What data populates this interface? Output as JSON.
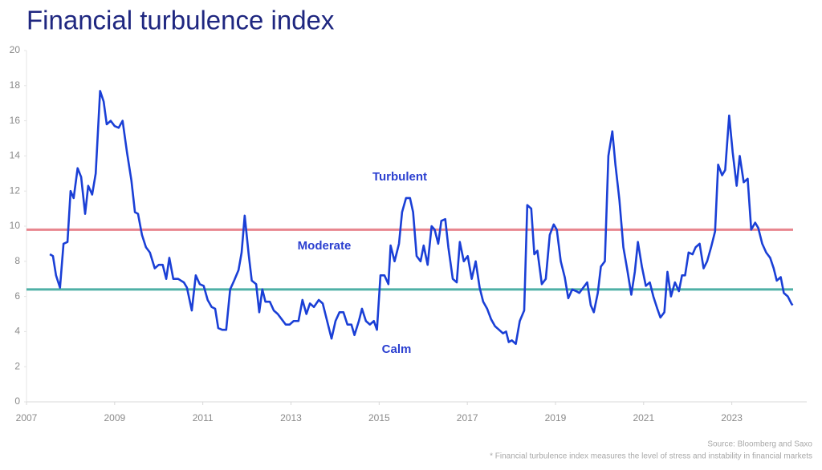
{
  "chart_data": {
    "type": "line",
    "title": "Financial turbulence index",
    "x": [
      2007.53,
      2007.6,
      2007.67,
      2007.76,
      2007.84,
      2007.93,
      2008.0,
      2008.07,
      2008.16,
      2008.24,
      2008.33,
      2008.4,
      2008.49,
      2008.57,
      2008.67,
      2008.75,
      2008.82,
      2008.91,
      2009.0,
      2009.09,
      2009.18,
      2009.28,
      2009.38,
      2009.46,
      2009.53,
      2009.62,
      2009.71,
      2009.8,
      2009.91,
      2010.0,
      2010.09,
      2010.17,
      2010.24,
      2010.33,
      2010.44,
      2010.57,
      2010.64,
      2010.75,
      2010.84,
      2010.93,
      2011.02,
      2011.11,
      2011.2,
      2011.28,
      2011.35,
      2011.44,
      2011.53,
      2011.62,
      2011.71,
      2011.81,
      2011.88,
      2011.95,
      2012.04,
      2012.11,
      2012.21,
      2012.28,
      2012.35,
      2012.42,
      2012.52,
      2012.61,
      2012.7,
      2012.79,
      2012.88,
      2012.97,
      2013.06,
      2013.17,
      2013.26,
      2013.35,
      2013.43,
      2013.52,
      2013.63,
      2013.72,
      2013.81,
      2013.92,
      2014.01,
      2014.1,
      2014.19,
      2014.28,
      2014.37,
      2014.44,
      2014.54,
      2014.61,
      2014.7,
      2014.79,
      2014.88,
      2014.95,
      2015.03,
      2015.12,
      2015.21,
      2015.26,
      2015.35,
      2015.45,
      2015.52,
      2015.61,
      2015.7,
      2015.77,
      2015.85,
      2015.94,
      2016.01,
      2016.1,
      2016.19,
      2016.26,
      2016.34,
      2016.41,
      2016.5,
      2016.57,
      2016.67,
      2016.76,
      2016.83,
      2016.92,
      2017.01,
      2017.1,
      2017.19,
      2017.28,
      2017.36,
      2017.45,
      2017.54,
      2017.63,
      2017.72,
      2017.81,
      2017.88,
      2017.94,
      2018.01,
      2018.1,
      2018.19,
      2018.29,
      2018.36,
      2018.45,
      2018.52,
      2018.59,
      2018.69,
      2018.78,
      2018.87,
      2018.96,
      2019.03,
      2019.12,
      2019.21,
      2019.29,
      2019.38,
      2019.47,
      2019.54,
      2019.63,
      2019.72,
      2019.8,
      2019.87,
      2019.96,
      2020.03,
      2020.12,
      2020.2,
      2020.29,
      2020.36,
      2020.45,
      2020.54,
      2020.63,
      2020.72,
      2020.8,
      2020.87,
      2020.96,
      2021.05,
      2021.14,
      2021.22,
      2021.31,
      2021.38,
      2021.47,
      2021.54,
      2021.62,
      2021.71,
      2021.8,
      2021.87,
      2021.94,
      2022.02,
      2022.11,
      2022.18,
      2022.27,
      2022.36,
      2022.44,
      2022.53,
      2022.62,
      2022.69,
      2022.78,
      2022.85,
      2022.94,
      2023.02,
      2023.11,
      2023.18,
      2023.27,
      2023.36,
      2023.44,
      2023.53,
      2023.6,
      2023.69,
      2023.78,
      2023.87,
      2023.95,
      2024.02,
      2024.11,
      2024.18,
      2024.27,
      2024.35,
      2024.38
    ],
    "values": [
      8.4,
      8.3,
      7.2,
      6.5,
      9.0,
      9.1,
      12.0,
      11.6,
      13.3,
      12.8,
      10.7,
      12.3,
      11.8,
      13.0,
      17.7,
      17.1,
      15.8,
      16.0,
      15.7,
      15.6,
      16.0,
      14.2,
      12.6,
      10.8,
      10.7,
      9.5,
      8.8,
      8.5,
      7.6,
      7.8,
      7.8,
      7.0,
      8.2,
      7.0,
      7.0,
      6.8,
      6.5,
      5.2,
      7.2,
      6.7,
      6.6,
      5.8,
      5.4,
      5.3,
      4.2,
      4.1,
      4.1,
      6.4,
      6.9,
      7.5,
      8.5,
      10.6,
      8.4,
      6.9,
      6.7,
      5.1,
      6.4,
      5.7,
      5.7,
      5.2,
      5.0,
      4.7,
      4.4,
      4.4,
      4.6,
      4.6,
      5.8,
      5.0,
      5.6,
      5.4,
      5.8,
      5.6,
      4.7,
      3.6,
      4.6,
      5.1,
      5.1,
      4.4,
      4.4,
      3.8,
      4.6,
      5.3,
      4.6,
      4.4,
      4.6,
      4.1,
      7.2,
      7.2,
      6.7,
      8.9,
      8.0,
      9.0,
      10.8,
      11.6,
      11.6,
      10.8,
      8.3,
      8.0,
      8.9,
      7.8,
      10.0,
      9.8,
      9.0,
      10.3,
      10.4,
      8.8,
      7.0,
      6.8,
      9.1,
      8.0,
      8.3,
      7.0,
      8.0,
      6.5,
      5.7,
      5.3,
      4.7,
      4.3,
      4.1,
      3.9,
      4.0,
      3.4,
      3.5,
      3.3,
      4.6,
      5.2,
      11.2,
      11.0,
      8.4,
      8.6,
      6.7,
      7.0,
      9.5,
      10.1,
      9.8,
      8.0,
      7.1,
      5.9,
      6.4,
      6.3,
      6.2,
      6.5,
      6.8,
      5.5,
      5.1,
      6.2,
      7.7,
      8.0,
      14.0,
      15.4,
      13.5,
      11.5,
      8.8,
      7.5,
      6.1,
      7.4,
      9.1,
      7.7,
      6.6,
      6.8,
      6.0,
      5.3,
      4.8,
      5.1,
      7.4,
      6.0,
      6.8,
      6.3,
      7.2,
      7.2,
      8.5,
      8.4,
      8.8,
      9.0,
      7.6,
      8.0,
      8.8,
      9.7,
      13.5,
      12.9,
      13.2,
      16.3,
      14.2,
      12.3,
      14.0,
      12.5,
      12.7,
      9.8,
      10.2,
      9.9,
      9.0,
      8.5,
      8.2,
      7.6,
      6.9,
      7.1,
      6.2,
      6.0,
      5.6,
      5.5
    ],
    "color": "#1a3fd6",
    "xlim": [
      2007,
      2024.7
    ],
    "xticks": [
      2007,
      2009,
      2011,
      2013,
      2015,
      2017,
      2019,
      2021,
      2023
    ],
    "ylim": [
      0,
      20
    ],
    "yticks": [
      0,
      2,
      4,
      6,
      8,
      10,
      12,
      14,
      16,
      18,
      20
    ],
    "reference_lines": [
      {
        "value": 9.8,
        "color": "#e8868f"
      },
      {
        "value": 6.4,
        "color": "#4fb0a6"
      }
    ],
    "annotations": [
      "Turbulent",
      "Moderate",
      "Calm"
    ],
    "source": "Source: Bloomberg and Saxo",
    "footnote": "* Financial turbulence index measures the level of stress and instability in financial markets"
  }
}
